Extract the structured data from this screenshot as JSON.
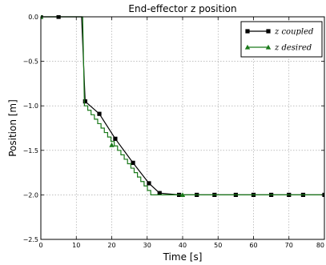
{
  "chart_data": {
    "type": "line",
    "title": "End-effector z position",
    "xlabel": "Time [s]",
    "ylabel": "Position [m]",
    "xlim": [
      0,
      80
    ],
    "ylim": [
      -2.5,
      0.0
    ],
    "xticks": [
      0,
      10,
      20,
      30,
      40,
      50,
      60,
      70,
      80
    ],
    "xtick_labels": [
      "0",
      "10",
      "20",
      "30",
      "40",
      "50",
      "60",
      "70",
      "80"
    ],
    "yticks": [
      0.0,
      -0.5,
      -1.0,
      -1.5,
      -2.0,
      -2.5
    ],
    "ytick_labels": [
      "0.0",
      "−0.5",
      "−1.0",
      "−1.5",
      "−2.0",
      "−2.5"
    ],
    "grid": true,
    "legend_position": "top-right",
    "series": [
      {
        "name": "z coupled",
        "color": "#000000",
        "marker": "square",
        "x": [
          0,
          5,
          11.5,
          11.5,
          12.5,
          16.5,
          21,
          26,
          30.5,
          33.5,
          39,
          44,
          49,
          55,
          60,
          65,
          70,
          74,
          80
        ],
        "y": [
          0.0,
          0.0,
          0.0,
          0.0,
          -0.95,
          -1.09,
          -1.37,
          -1.64,
          -1.87,
          -1.98,
          -2.0,
          -2.0,
          -2.0,
          -2.0,
          -2.0,
          -2.0,
          -2.0,
          -2.0,
          -2.0
        ],
        "markers_x": [
          0,
          5,
          12.5,
          16.5,
          21,
          26,
          30.5,
          33.5,
          39,
          44,
          49,
          55,
          60,
          65,
          70,
          74,
          80
        ],
        "markers_y": [
          0.0,
          0.0,
          -0.95,
          -1.09,
          -1.37,
          -1.64,
          -1.87,
          -1.98,
          -2.0,
          -2.0,
          -2.0,
          -2.0,
          -2.0,
          -2.0,
          -2.0,
          -2.0,
          -2.0
        ]
      },
      {
        "name": "z desired",
        "color": "#1a7a1a",
        "marker": "triangle",
        "x": [
          0,
          11.8,
          11.8,
          12.3,
          31.0,
          80
        ],
        "y": [
          0.0,
          0.0,
          0.0,
          -1.0,
          -2.0,
          -2.0
        ],
        "markers_x": [
          0,
          20,
          40
        ],
        "markers_y": [
          0.0,
          -1.44,
          -2.0
        ]
      }
    ]
  }
}
